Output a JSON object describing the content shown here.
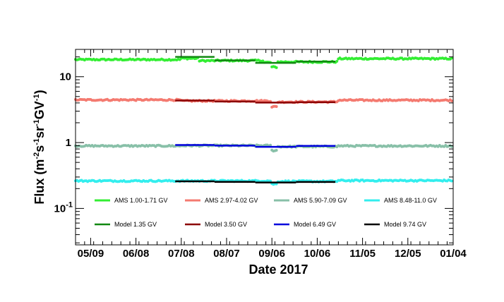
{
  "chart_data": {
    "type": "scatter",
    "title": "",
    "xlabel": "Date 2017",
    "ylabel_parts": [
      "Flux (m",
      "-2",
      "s",
      "-1",
      "sr",
      "-1",
      "GV",
      "-1",
      ")"
    ],
    "ylabel": "Flux (m-2s-1sr-1GV-1)",
    "y_scale": "log",
    "ylim": [
      0.028,
      26
    ],
    "y_tick_labels": [
      {
        "value": 10,
        "base": "10",
        "exp": ""
      },
      {
        "value": 1,
        "base": "1",
        "exp": ""
      },
      {
        "value": 0.1,
        "base": "10",
        "exp": "-1"
      }
    ],
    "x_tick_labels": [
      "05/09",
      "06/08",
      "07/08",
      "08/07",
      "09/06",
      "10/06",
      "11/05",
      "12/05",
      "01/04"
    ],
    "x_tick_dates": [
      "2017-05-09",
      "2017-06-08",
      "2017-07-08",
      "2017-08-07",
      "2017-09-06",
      "2017-10-06",
      "2017-11-05",
      "2017-12-05",
      "2018-01-04"
    ],
    "xlim": [
      "2017-04-29",
      "2018-01-04"
    ],
    "grid": false,
    "legend_placement": "bottom, inside plot",
    "series": [
      {
        "name": "AMS 1.00-1.71 GV",
        "kind": "points",
        "color": "#33ee33",
        "segments": [
          {
            "from": "2017-04-29",
            "to": "2017-07-08",
            "value": 18.2
          },
          {
            "from": "2017-07-08",
            "to": "2017-07-20",
            "value": 19.0
          },
          {
            "from": "2017-07-20",
            "to": "2017-08-01",
            "value": 17.5
          },
          {
            "from": "2017-08-01",
            "to": "2017-09-01",
            "value": 17.6
          },
          {
            "from": "2017-09-01",
            "to": "2017-09-06",
            "value": 16.5
          },
          {
            "from": "2017-09-06",
            "to": "2017-09-10",
            "value": 14.0
          },
          {
            "from": "2017-09-10",
            "to": "2017-10-20",
            "value": 16.8
          },
          {
            "from": "2017-10-20",
            "to": "2018-01-04",
            "value": 18.8
          }
        ]
      },
      {
        "name": "AMS 2.97-4.02 GV",
        "kind": "points",
        "color": "#f47a70",
        "segments": [
          {
            "from": "2017-04-29",
            "to": "2017-07-08",
            "value": 4.45
          },
          {
            "from": "2017-07-08",
            "to": "2017-09-06",
            "value": 4.3
          },
          {
            "from": "2017-09-06",
            "to": "2017-09-10",
            "value": 3.5
          },
          {
            "from": "2017-09-10",
            "to": "2017-10-20",
            "value": 4.15
          },
          {
            "from": "2017-10-20",
            "to": "2018-01-04",
            "value": 4.4
          }
        ]
      },
      {
        "name": "AMS 5.90-7.09 GV",
        "kind": "points",
        "color": "#88c0a8",
        "segments": [
          {
            "from": "2017-04-29",
            "to": "2017-07-08",
            "value": 0.89
          },
          {
            "from": "2017-07-08",
            "to": "2017-09-06",
            "value": 0.9
          },
          {
            "from": "2017-09-06",
            "to": "2017-09-10",
            "value": 0.76
          },
          {
            "from": "2017-09-10",
            "to": "2017-10-20",
            "value": 0.87
          },
          {
            "from": "2017-10-20",
            "to": "2018-01-04",
            "value": 0.89
          }
        ]
      },
      {
        "name": "AMS 8.48-11.0 GV",
        "kind": "points",
        "color": "#33eeee",
        "segments": [
          {
            "from": "2017-04-29",
            "to": "2017-07-08",
            "value": 0.262
          },
          {
            "from": "2017-07-08",
            "to": "2017-09-06",
            "value": 0.262
          },
          {
            "from": "2017-09-06",
            "to": "2017-09-10",
            "value": 0.235
          },
          {
            "from": "2017-09-10",
            "to": "2017-10-20",
            "value": 0.258
          },
          {
            "from": "2017-10-20",
            "to": "2018-01-04",
            "value": 0.265
          }
        ]
      },
      {
        "name": "Model 1.35 GV",
        "kind": "steps",
        "color": "#118811",
        "steps": [
          {
            "from": "2017-07-04",
            "to": "2017-07-30",
            "value": 20.0
          },
          {
            "from": "2017-07-30",
            "to": "2017-08-26",
            "value": 17.7
          },
          {
            "from": "2017-08-26",
            "to": "2017-09-22",
            "value": 16.2
          },
          {
            "from": "2017-09-22",
            "to": "2017-10-18",
            "value": 17.0
          }
        ]
      },
      {
        "name": "Model 3.50 GV",
        "kind": "steps",
        "color": "#8b0000",
        "steps": [
          {
            "from": "2017-07-04",
            "to": "2017-07-30",
            "value": 4.35
          },
          {
            "from": "2017-07-30",
            "to": "2017-08-26",
            "value": 4.2
          },
          {
            "from": "2017-08-26",
            "to": "2017-09-22",
            "value": 4.05
          },
          {
            "from": "2017-09-22",
            "to": "2017-10-18",
            "value": 4.1
          }
        ]
      },
      {
        "name": "Model 6.49 GV",
        "kind": "steps",
        "color": "#0000dd",
        "steps": [
          {
            "from": "2017-07-04",
            "to": "2017-07-30",
            "value": 0.92
          },
          {
            "from": "2017-07-30",
            "to": "2017-08-26",
            "value": 0.9
          },
          {
            "from": "2017-08-26",
            "to": "2017-09-22",
            "value": 0.86
          },
          {
            "from": "2017-09-22",
            "to": "2017-10-18",
            "value": 0.89
          }
        ]
      },
      {
        "name": "Model 9.74 GV",
        "kind": "steps",
        "color": "#000000",
        "steps": [
          {
            "from": "2017-07-04",
            "to": "2017-07-30",
            "value": 0.258
          },
          {
            "from": "2017-07-30",
            "to": "2017-08-26",
            "value": 0.253
          },
          {
            "from": "2017-08-26",
            "to": "2017-09-22",
            "value": 0.248
          },
          {
            "from": "2017-09-22",
            "to": "2017-10-18",
            "value": 0.252
          }
        ]
      }
    ]
  }
}
